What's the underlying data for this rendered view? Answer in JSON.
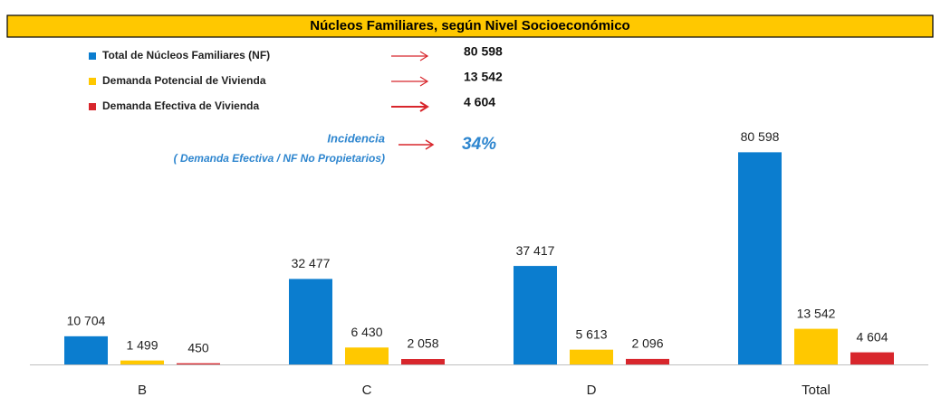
{
  "chart_data": {
    "type": "bar",
    "title": "Núcleos Familiares, según Nivel Socioeconómico",
    "categories": [
      "B",
      "C",
      "D",
      "Total"
    ],
    "series": [
      {
        "name": "Total de Núcleos Familiares (NF)",
        "color": "#0b7dcf",
        "values": [
          10704,
          32477,
          37417,
          80598
        ],
        "value_labels": [
          "10 704",
          "32 477",
          "37 417",
          "80 598"
        ]
      },
      {
        "name": "Demanda Potencial de Vivienda",
        "color": "#ffc800",
        "values": [
          1499,
          6430,
          5613,
          13542
        ],
        "value_labels": [
          "1 499",
          "6 430",
          "5 613",
          "13 542"
        ]
      },
      {
        "name": "Demanda Efectiva de Vivienda",
        "color": "#d8262c",
        "values": [
          450,
          2058,
          2096,
          4604
        ],
        "value_labels": [
          "450",
          "2 058",
          "2 096",
          "4 604"
        ]
      }
    ],
    "ylim": [
      0,
      90000
    ],
    "incidence": {
      "label": "Incidencia",
      "formula": "( Demanda Efectiva / NF No Propietarios)",
      "value": "34%"
    }
  }
}
